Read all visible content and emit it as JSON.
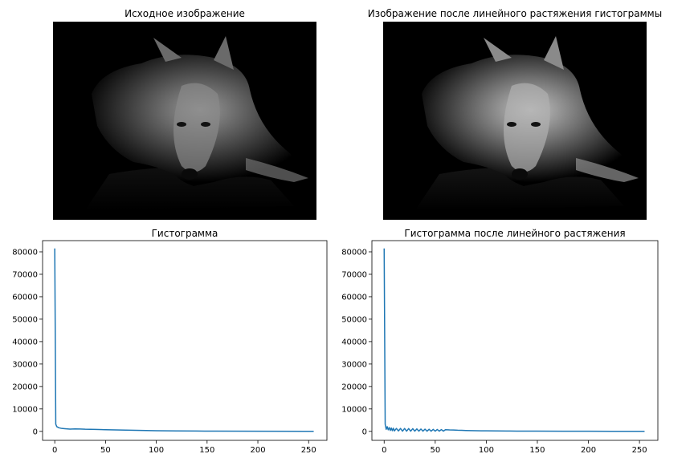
{
  "panels": {
    "original_image": {
      "title": "Исходное изображение"
    },
    "stretched_image": {
      "title": "Изображение после линейного растяжения гистограммы"
    }
  },
  "chart_data": [
    {
      "type": "line",
      "title": "Гистограмма",
      "xlabel": "",
      "ylabel": "",
      "xlim": [
        -12,
        268
      ],
      "ylim": [
        -4000,
        85000
      ],
      "xticks": [
        0,
        50,
        100,
        150,
        200,
        250
      ],
      "yticks": [
        0,
        10000,
        20000,
        30000,
        40000,
        50000,
        60000,
        70000,
        80000
      ],
      "series": [
        {
          "color": "#1f77b4",
          "x": [
            0,
            1,
            2,
            4,
            7,
            10,
            15,
            20,
            25,
            30,
            40,
            50,
            60,
            70,
            80,
            100,
            120,
            140,
            160,
            200,
            255
          ],
          "y": [
            81500,
            3200,
            2100,
            1600,
            1300,
            1200,
            1000,
            1100,
            1050,
            950,
            850,
            750,
            650,
            550,
            450,
            300,
            200,
            150,
            100,
            60,
            30
          ]
        }
      ]
    },
    {
      "type": "line",
      "title": "Гистограмма после линейного растяжения",
      "xlabel": "",
      "ylabel": "",
      "xlim": [
        -12,
        268
      ],
      "ylim": [
        -4000,
        85000
      ],
      "xticks": [
        0,
        50,
        100,
        150,
        200,
        250
      ],
      "yticks": [
        0,
        10000,
        20000,
        30000,
        40000,
        50000,
        60000,
        70000,
        80000
      ],
      "series": [
        {
          "color": "#1f77b4",
          "x": [
            0,
            1,
            2,
            3,
            4,
            5,
            6,
            7,
            8,
            9,
            10,
            12,
            14,
            16,
            18,
            20,
            22,
            24,
            26,
            28,
            30,
            32,
            34,
            36,
            38,
            40,
            42,
            44,
            46,
            48,
            50,
            52,
            54,
            56,
            58,
            60,
            64,
            68,
            72,
            76,
            80,
            85,
            90,
            95,
            100,
            110,
            120,
            130,
            140,
            150,
            175,
            200,
            225,
            255
          ],
          "y": [
            81500,
            3200,
            900,
            2100,
            700,
            1700,
            400,
            1500,
            300,
            1400,
            200,
            1300,
            200,
            1300,
            100,
            1300,
            100,
            1250,
            100,
            1200,
            100,
            1100,
            100,
            1050,
            100,
            1000,
            100,
            950,
            100,
            900,
            100,
            850,
            100,
            800,
            100,
            750,
            650,
            600,
            500,
            450,
            400,
            350,
            300,
            250,
            250,
            200,
            150,
            120,
            100,
            90,
            70,
            50,
            40,
            30
          ]
        }
      ]
    }
  ]
}
